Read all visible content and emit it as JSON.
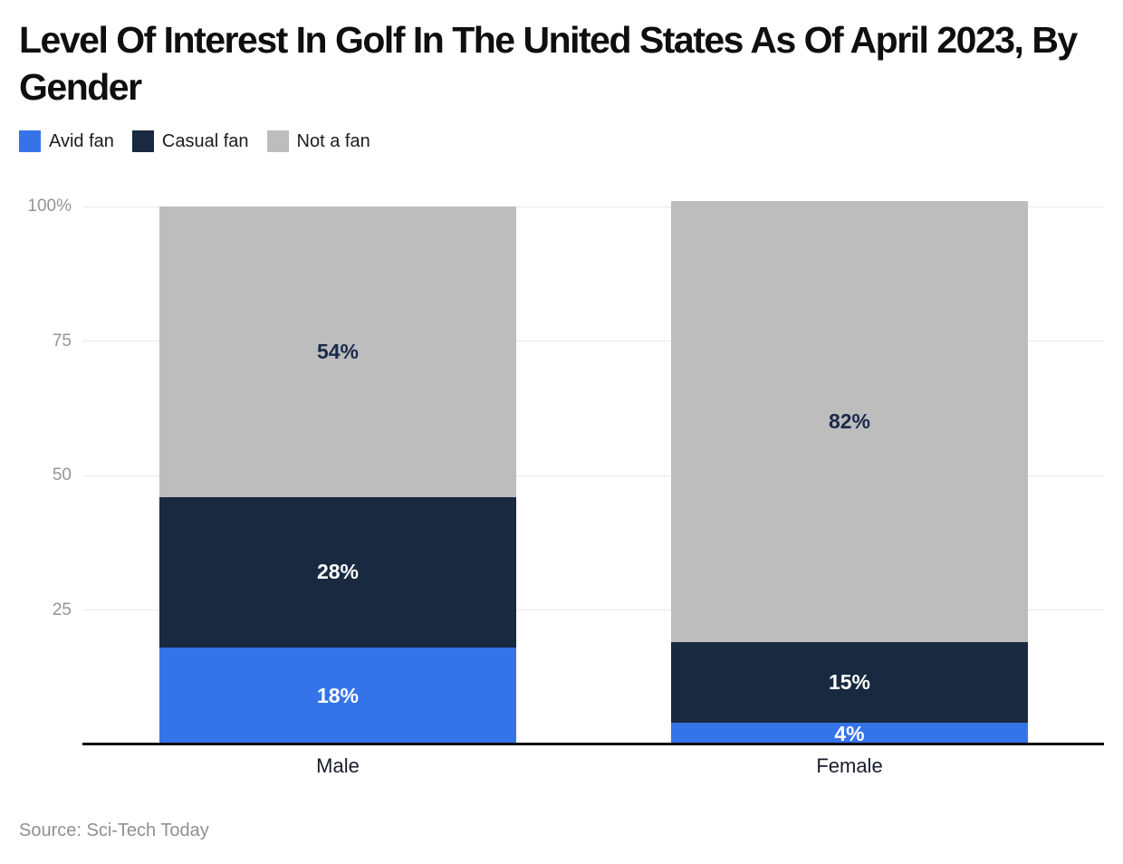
{
  "header": {
    "title": "Level Of Interest In Golf In The United States As Of April 2023, By Gender"
  },
  "chart_data": {
    "type": "bar",
    "stacked": true,
    "orientation": "vertical",
    "title": "Level Of Interest In Golf In The United States As Of April 2023, By Gender",
    "categories": [
      "Male",
      "Female"
    ],
    "series": [
      {
        "name": "Avid fan",
        "color": "#3574e8",
        "label_color": "#ffffff",
        "values": [
          18,
          4
        ]
      },
      {
        "name": "Casual fan",
        "color": "#182940",
        "label_color": "#ffffff",
        "values": [
          28,
          15
        ]
      },
      {
        "name": "Not a fan",
        "color": "#bdbdbd",
        "label_color": "#1b2a4a",
        "values": [
          54,
          82
        ]
      }
    ],
    "value_suffix": "%",
    "data_labels": [
      "18%",
      "28%",
      "54%",
      "4%",
      "15%",
      "82%"
    ],
    "xlabel": "",
    "ylabel": "",
    "ylim": [
      0,
      100
    ],
    "y_ticks": [
      {
        "value": 100,
        "label": "100%"
      },
      {
        "value": 75,
        "label": "75"
      },
      {
        "value": 50,
        "label": "50"
      },
      {
        "value": 25,
        "label": "25"
      }
    ],
    "grid": true,
    "gridline_color": "#e8e8e8",
    "axis_line_color": "#0d0d0d",
    "tick_label_color": "#949494",
    "legend_position": "top"
  },
  "footer": {
    "source": "Source: Sci-Tech Today"
  }
}
